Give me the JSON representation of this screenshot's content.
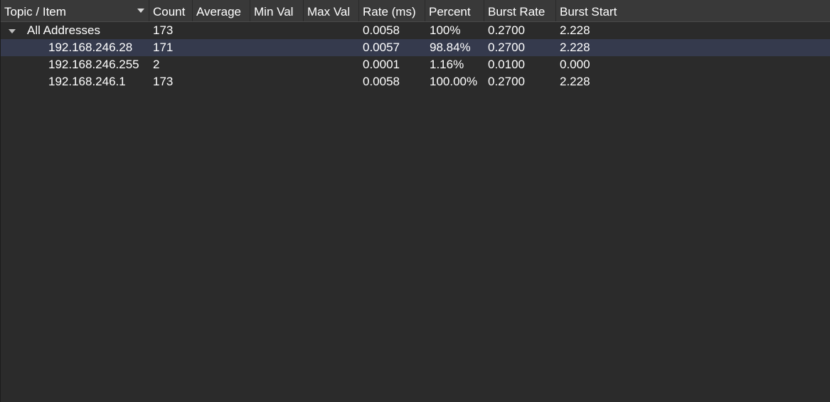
{
  "columns": {
    "topic": "Topic / Item",
    "count": "Count",
    "average": "Average",
    "min_val": "Min Val",
    "max_val": "Max Val",
    "rate": "Rate (ms)",
    "percent": "Percent",
    "burst_rate": "Burst Rate",
    "burst_start": "Burst Start"
  },
  "rows": [
    {
      "topic": "All Addresses",
      "count": "173",
      "average": "",
      "min_val": "",
      "max_val": "",
      "rate": "0.0058",
      "percent": "100%",
      "burst_rate": "0.2700",
      "burst_start": "2.228"
    },
    {
      "topic": "192.168.246.28",
      "count": "171",
      "average": "",
      "min_val": "",
      "max_val": "",
      "rate": "0.0057",
      "percent": "98.84%",
      "burst_rate": "0.2700",
      "burst_start": "2.228"
    },
    {
      "topic": "192.168.246.255",
      "count": "2",
      "average": "",
      "min_val": "",
      "max_val": "",
      "rate": "0.0001",
      "percent": "1.16%",
      "burst_rate": "0.0100",
      "burst_start": "0.000"
    },
    {
      "topic": "192.168.246.1",
      "count": "173",
      "average": "",
      "min_val": "",
      "max_val": "",
      "rate": "0.0058",
      "percent": "100.00%",
      "burst_rate": "0.2700",
      "burst_start": "2.228"
    }
  ],
  "icons": {
    "sort_indicator": "chevron-down-icon",
    "tree_expander": "expand-arrow-icon"
  },
  "colors": {
    "background": "#2b2b2b",
    "header_background": "#393939",
    "selected_row": "#353a4d",
    "text": "#ffffff"
  }
}
